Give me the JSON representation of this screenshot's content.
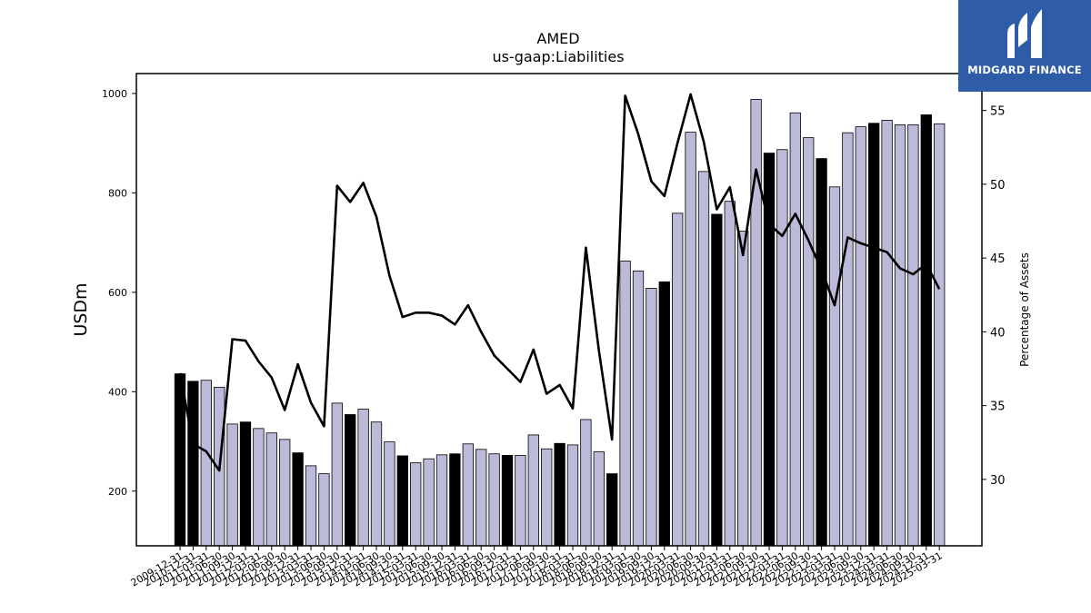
{
  "brand": {
    "name": "MIDGARD FINANCE",
    "bg_color": "#2f5ca8",
    "icon": "midgard-m-logo-icon"
  },
  "chart_data": {
    "type": "bar+line",
    "title": "AMED",
    "subtitle": "us-gaap:Liabilities",
    "ylabel": "USDm",
    "y2label": "Percentage of Assets",
    "ylim": [
      90,
      1040
    ],
    "y2lim": [
      25.5,
      57.5
    ],
    "yticks": [
      200,
      400,
      600,
      800,
      1000
    ],
    "y2ticks": [
      30,
      35,
      40,
      45,
      50,
      55
    ],
    "grid": false,
    "colors": {
      "bar_q4": "#000000",
      "bar_other": "#bcbad9",
      "line": "#000000"
    },
    "x": [
      "2009-12-31",
      "2010-12-31",
      "2011-03-31",
      "2011-06-30",
      "2011-09-30",
      "2011-12-31",
      "2012-03-31",
      "2012-06-30",
      "2012-09-30",
      "2012-12-31",
      "2013-03-31",
      "2013-06-30",
      "2013-09-30",
      "2013-12-31",
      "2014-03-31",
      "2014-06-30",
      "2014-09-30",
      "2014-12-31",
      "2015-03-31",
      "2015-06-30",
      "2015-09-30",
      "2015-12-31",
      "2016-03-31",
      "2016-06-30",
      "2016-09-30",
      "2016-12-31",
      "2017-03-31",
      "2017-06-30",
      "2017-09-30",
      "2017-12-31",
      "2018-03-31",
      "2018-06-30",
      "2018-09-30",
      "2018-12-31",
      "2019-03-31",
      "2019-06-30",
      "2019-09-30",
      "2019-12-31",
      "2020-03-31",
      "2020-06-30",
      "2020-09-30",
      "2020-12-31",
      "2021-03-31",
      "2021-06-30",
      "2021-09-30",
      "2021-12-31",
      "2022-03-31",
      "2022-06-30",
      "2022-09-30",
      "2022-12-31",
      "2023-03-31",
      "2023-06-30",
      "2023-09-30",
      "2023-12-31",
      "2024-03-31",
      "2024-06-30",
      "2024-09-30",
      "2024-12-31",
      "2025-03-31"
    ],
    "liabilities": [
      436,
      421,
      423,
      409,
      335,
      339,
      326,
      317,
      304,
      277,
      251,
      235,
      377,
      354,
      365,
      339,
      299,
      271,
      257,
      265,
      273,
      275,
      295,
      284,
      275,
      272,
      272,
      313,
      285,
      296,
      293,
      344,
      279,
      235,
      663,
      643,
      608,
      621,
      759,
      922,
      843,
      757,
      783,
      723,
      988,
      880,
      887,
      961,
      911,
      869,
      812,
      921,
      933,
      940,
      946,
      937,
      937,
      957,
      939
    ],
    "is_q4": [
      1,
      1,
      0,
      0,
      0,
      1,
      0,
      0,
      0,
      1,
      0,
      0,
      0,
      1,
      0,
      0,
      0,
      1,
      0,
      0,
      0,
      1,
      0,
      0,
      0,
      1,
      0,
      0,
      0,
      1,
      0,
      0,
      0,
      1,
      0,
      0,
      0,
      1,
      0,
      0,
      0,
      1,
      0,
      0,
      0,
      1,
      0,
      0,
      0,
      1,
      0,
      0,
      0,
      1,
      0,
      0,
      0,
      1,
      0
    ],
    "pct_of_assets": [
      37.2,
      32.4,
      31.9,
      30.6,
      39.5,
      39.4,
      38.0,
      36.9,
      34.7,
      37.8,
      35.2,
      33.6,
      49.9,
      48.8,
      50.1,
      47.8,
      43.8,
      41.0,
      41.3,
      41.3,
      41.1,
      40.5,
      41.8,
      40.0,
      38.4,
      37.5,
      36.6,
      38.8,
      35.8,
      36.4,
      34.8,
      45.7,
      38.7,
      32.7,
      56.0,
      53.4,
      50.2,
      49.2,
      52.8,
      56.1,
      52.9,
      48.3,
      49.8,
      45.2,
      51.0,
      47.3,
      46.5,
      48.0,
      46.2,
      44.2,
      41.8,
      46.4,
      46.0,
      45.7,
      45.4,
      44.3,
      43.9,
      44.6,
      42.9
    ]
  }
}
